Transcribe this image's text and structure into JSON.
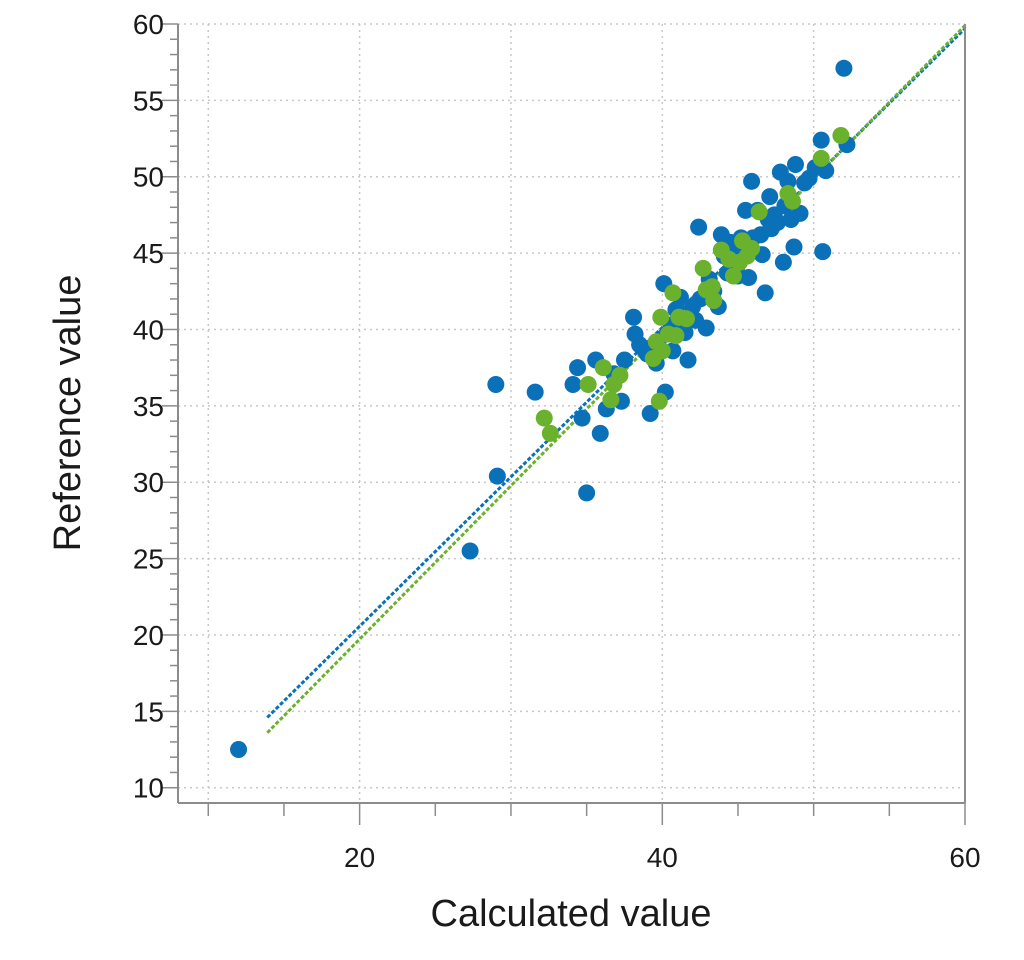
{
  "chart_data": {
    "type": "scatter",
    "xlabel": "Calculated value",
    "ylabel": "Reference value",
    "xlim": [
      8,
      60
    ],
    "ylim": [
      9,
      60
    ],
    "xticks": [
      20,
      40,
      60
    ],
    "yticks": [
      10,
      15,
      20,
      25,
      30,
      35,
      40,
      45,
      50,
      55,
      60
    ],
    "grid": true,
    "colors": {
      "series_blue": "#0a70b8",
      "series_green": "#6ab22e",
      "grid": "#c8c8c8",
      "axis": "#8c8c8c"
    },
    "series": [
      {
        "color": "#0a70b8",
        "points": [
          [
            12,
            12.5
          ],
          [
            27.3,
            25.5
          ],
          [
            29,
            36.4
          ],
          [
            29.1,
            30.4
          ],
          [
            31.6,
            35.9
          ],
          [
            34.1,
            36.4
          ],
          [
            34.4,
            37.5
          ],
          [
            34.7,
            34.2
          ],
          [
            35,
            29.3
          ],
          [
            35.6,
            38
          ],
          [
            35.9,
            33.2
          ],
          [
            36.3,
            34.8
          ],
          [
            36.8,
            37.1
          ],
          [
            37.3,
            35.3
          ],
          [
            37.5,
            38
          ],
          [
            38.1,
            40.8
          ],
          [
            38.2,
            39.7
          ],
          [
            38.5,
            39
          ],
          [
            38.8,
            38.7
          ],
          [
            39,
            38.4
          ],
          [
            39.2,
            34.5
          ],
          [
            39.6,
            37.8
          ],
          [
            39.8,
            38.8
          ],
          [
            40.1,
            43
          ],
          [
            40.2,
            35.9
          ],
          [
            40.3,
            39.7
          ],
          [
            40.6,
            40.3
          ],
          [
            40.7,
            38.6
          ],
          [
            40.9,
            41.3
          ],
          [
            41.2,
            42.1
          ],
          [
            41.5,
            39.8
          ],
          [
            41.7,
            38
          ],
          [
            42,
            41.5
          ],
          [
            42.2,
            40.6
          ],
          [
            42.4,
            46.7
          ],
          [
            42.5,
            42
          ],
          [
            42.9,
            40.1
          ],
          [
            43.1,
            43.3
          ],
          [
            43.4,
            42.5
          ],
          [
            43.7,
            41.5
          ],
          [
            43.9,
            46.2
          ],
          [
            44.1,
            44.8
          ],
          [
            44.3,
            43.7
          ],
          [
            44.5,
            45.7
          ],
          [
            44.7,
            45.3
          ],
          [
            44.9,
            44
          ],
          [
            45,
            43.5
          ],
          [
            45.2,
            46
          ],
          [
            45.5,
            47.8
          ],
          [
            45.7,
            43.4
          ],
          [
            45.9,
            49.7
          ],
          [
            46,
            46
          ],
          [
            46.3,
            47.8
          ],
          [
            46.5,
            46.2
          ],
          [
            46.6,
            44.9
          ],
          [
            46.8,
            42.4
          ],
          [
            47,
            47.2
          ],
          [
            47.1,
            48.7
          ],
          [
            47.2,
            46.6
          ],
          [
            47.4,
            47.5
          ],
          [
            47.6,
            47
          ],
          [
            47.8,
            50.3
          ],
          [
            48,
            44.4
          ],
          [
            48.1,
            48.1
          ],
          [
            48.3,
            49.7
          ],
          [
            48.5,
            47.2
          ],
          [
            48.7,
            45.4
          ],
          [
            48.8,
            50.8
          ],
          [
            49.1,
            47.6
          ],
          [
            49.4,
            49.6
          ],
          [
            49.7,
            49.9
          ],
          [
            50.1,
            50.6
          ],
          [
            50.5,
            52.4
          ],
          [
            50.6,
            45.1
          ],
          [
            50.8,
            50.4
          ],
          [
            52,
            57.1
          ],
          [
            52.2,
            52.1
          ]
        ],
        "fit": {
          "x": [
            13.9,
            60
          ],
          "y": [
            14.6,
            59.7
          ]
        }
      },
      {
        "color": "#6ab22e",
        "points": [
          [
            32.2,
            34.2
          ],
          [
            32.6,
            33.2
          ],
          [
            35.1,
            36.4
          ],
          [
            36.1,
            37.5
          ],
          [
            36.6,
            35.4
          ],
          [
            36.8,
            36.4
          ],
          [
            37.2,
            37
          ],
          [
            39.4,
            38.1
          ],
          [
            39.6,
            39.2
          ],
          [
            39.8,
            35.3
          ],
          [
            39.9,
            40.8
          ],
          [
            40,
            38.6
          ],
          [
            40.4,
            39.7
          ],
          [
            40.7,
            42.4
          ],
          [
            40.9,
            39.6
          ],
          [
            41.1,
            40.8
          ],
          [
            41.6,
            40.7
          ],
          [
            42.7,
            44
          ],
          [
            42.9,
            42.6
          ],
          [
            43.3,
            42.8
          ],
          [
            43.4,
            41.9
          ],
          [
            43.9,
            45.2
          ],
          [
            44.4,
            44.6
          ],
          [
            44.7,
            43.5
          ],
          [
            45.1,
            44.4
          ],
          [
            45.3,
            45.8
          ],
          [
            45.6,
            44.8
          ],
          [
            45.9,
            45.3
          ],
          [
            46.4,
            47.7
          ],
          [
            48.3,
            48.9
          ],
          [
            48.6,
            48.4
          ],
          [
            50.5,
            51.2
          ],
          [
            51.8,
            52.7
          ]
        ],
        "fit": {
          "x": [
            13.9,
            60
          ],
          "y": [
            13.6,
            59.9
          ]
        }
      }
    ]
  }
}
